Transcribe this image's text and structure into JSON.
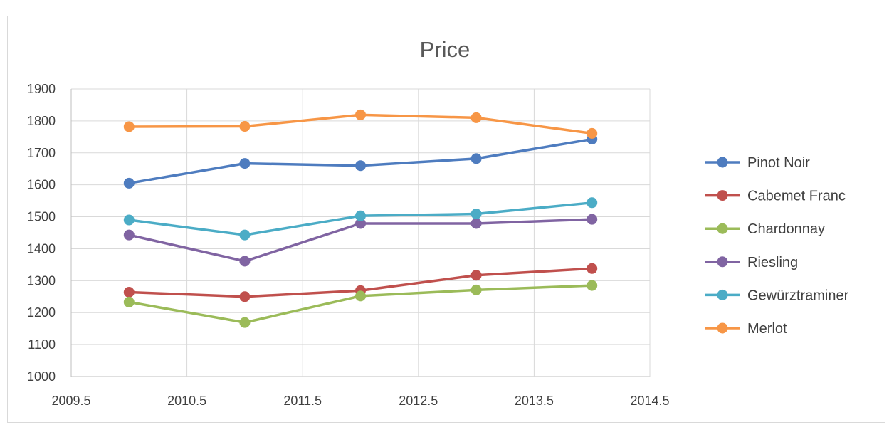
{
  "chart_data": {
    "type": "scatter",
    "title": "Price",
    "xlabel": "",
    "ylabel": "",
    "xlim": [
      2009.5,
      2014.5
    ],
    "ylim": [
      1000,
      1900
    ],
    "xticks": [
      "2009.5",
      "2010.5",
      "2011.5",
      "2012.5",
      "2013.5",
      "2014.5"
    ],
    "xtick_values": [
      2009.5,
      2010.5,
      2011.5,
      2012.5,
      2013.5,
      2014.5
    ],
    "yticks": [
      "1000",
      "1100",
      "1200",
      "1300",
      "1400",
      "1500",
      "1600",
      "1700",
      "1800",
      "1900"
    ],
    "ytick_values": [
      1000,
      1100,
      1200,
      1300,
      1400,
      1500,
      1600,
      1700,
      1800,
      1900
    ],
    "grid": "on",
    "legend_position": "right",
    "x": [
      2010,
      2011,
      2012,
      2013,
      2014
    ],
    "series": [
      {
        "name": "Pinot Noir",
        "color": "#4e7cbf",
        "values": [
          1605,
          1667,
          1660,
          1682,
          1743
        ]
      },
      {
        "name": "Cabemet Franc",
        "color": "#c0504d",
        "values": [
          1264,
          1250,
          1269,
          1317,
          1338
        ]
      },
      {
        "name": "Chardonnay",
        "color": "#9bbb59",
        "values": [
          1233,
          1169,
          1252,
          1271,
          1285
        ]
      },
      {
        "name": "Riesling",
        "color": "#8064a2",
        "values": [
          1443,
          1361,
          1479,
          1479,
          1492
        ]
      },
      {
        "name": "Gewürztraminer",
        "color": "#4bacc6",
        "values": [
          1490,
          1443,
          1503,
          1509,
          1544
        ]
      },
      {
        "name": "Merlot",
        "color": "#f79646",
        "values": [
          1782,
          1783,
          1819,
          1810,
          1761
        ]
      }
    ]
  }
}
